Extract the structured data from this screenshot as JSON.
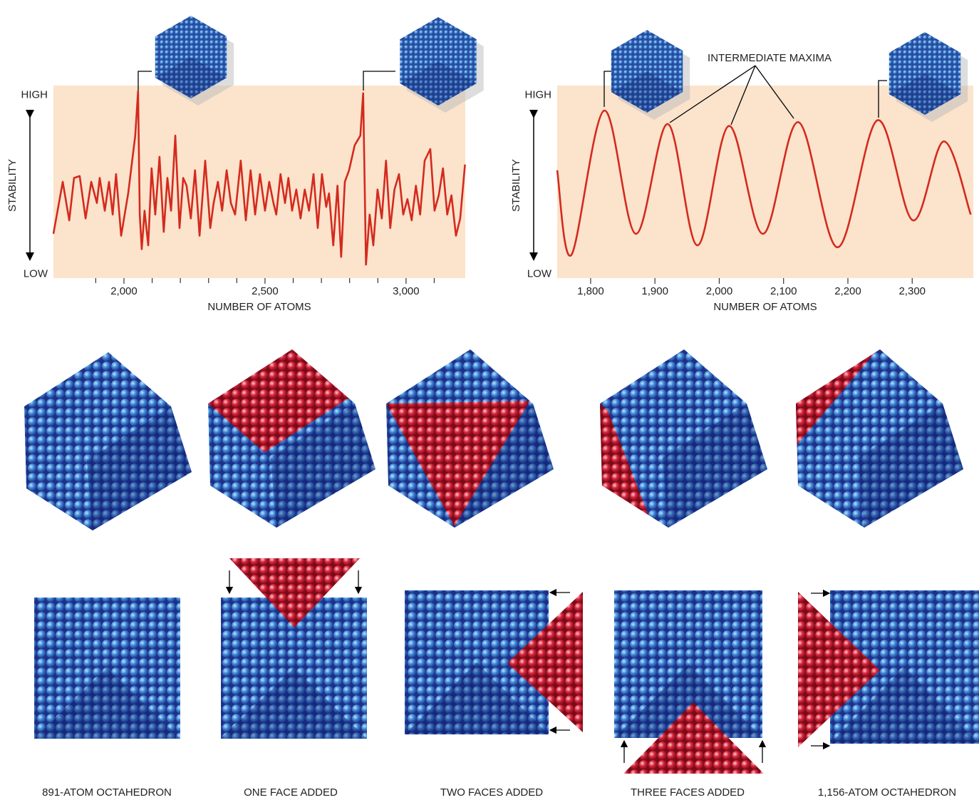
{
  "chart_data": [
    {
      "type": "line",
      "y_label": "STABILITY",
      "x_label": "NUMBER OF ATOMS",
      "color": "#d42a1e",
      "background": "#fbe3cc",
      "xlim": [
        1750,
        3210
      ],
      "ylim": [
        0,
        1
      ],
      "xticks": [
        {
          "value": 2000,
          "label": "2,000"
        },
        {
          "value": 2500,
          "label": "2,500"
        },
        {
          "value": 3000,
          "label": "3,000"
        }
      ],
      "xminor_ticks": [
        1900,
        2100,
        2200,
        2300,
        2400,
        2600,
        2700,
        2800,
        2900,
        3100
      ],
      "yticks": [
        {
          "value": 0.95,
          "label": "HIGH"
        },
        {
          "value": 0.02,
          "label": "LOW"
        }
      ],
      "x": [
        1750,
        1783,
        1806,
        1823,
        1843,
        1864,
        1884,
        1904,
        1914,
        1932,
        1947,
        1960,
        1972,
        1990,
        2015,
        2040,
        2050,
        2056,
        2063,
        2073,
        2086,
        2098,
        2111,
        2126,
        2141,
        2154,
        2167,
        2182,
        2197,
        2210,
        2222,
        2237,
        2252,
        2268,
        2288,
        2306,
        2318,
        2333,
        2348,
        2364,
        2379,
        2394,
        2414,
        2432,
        2449,
        2465,
        2482,
        2500,
        2515,
        2530,
        2540,
        2555,
        2571,
        2583,
        2596,
        2611,
        2626,
        2641,
        2656,
        2672,
        2687,
        2702,
        2717,
        2727,
        2742,
        2757,
        2770,
        2783,
        2798,
        2818,
        2838,
        2848,
        2858,
        2871,
        2884,
        2899,
        2914,
        2929,
        2944,
        2959,
        2975,
        2990,
        3005,
        3020,
        3035,
        3050,
        3066,
        3086,
        3101,
        3116,
        3131,
        3146,
        3161,
        3177,
        3192,
        3209
      ],
      "values": [
        0.23,
        0.5,
        0.3,
        0.52,
        0.53,
        0.31,
        0.5,
        0.39,
        0.52,
        0.35,
        0.5,
        0.33,
        0.54,
        0.22,
        0.44,
        0.74,
        0.97,
        0.33,
        0.15,
        0.35,
        0.17,
        0.57,
        0.33,
        0.63,
        0.24,
        0.52,
        0.35,
        0.74,
        0.26,
        0.52,
        0.48,
        0.31,
        0.56,
        0.22,
        0.61,
        0.26,
        0.39,
        0.5,
        0.35,
        0.56,
        0.39,
        0.33,
        0.61,
        0.3,
        0.56,
        0.33,
        0.54,
        0.35,
        0.5,
        0.39,
        0.33,
        0.54,
        0.39,
        0.52,
        0.35,
        0.46,
        0.31,
        0.46,
        0.35,
        0.54,
        0.26,
        0.54,
        0.37,
        0.44,
        0.17,
        0.48,
        0.11,
        0.5,
        0.56,
        0.69,
        0.74,
        0.96,
        0.07,
        0.33,
        0.17,
        0.46,
        0.31,
        0.61,
        0.26,
        0.46,
        0.54,
        0.33,
        0.41,
        0.3,
        0.48,
        0.33,
        0.61,
        0.67,
        0.35,
        0.43,
        0.57,
        0.33,
        0.43,
        0.22,
        0.31,
        0.59
      ]
    },
    {
      "type": "line",
      "y_label": "STABILITY",
      "x_label": "NUMBER OF ATOMS",
      "color": "#d42a1e",
      "background": "#fbe3cc",
      "annotation": "INTERMEDIATE MAXIMA",
      "xlim": [
        1748,
        2395
      ],
      "ylim": [
        0,
        1
      ],
      "xticks": [
        {
          "value": 1800,
          "label": "1,800"
        },
        {
          "value": 1900,
          "label": "1,900"
        },
        {
          "value": 2000,
          "label": "2,000"
        },
        {
          "value": 2100,
          "label": "2,100"
        },
        {
          "value": 2200,
          "label": "2,200"
        },
        {
          "value": 2300,
          "label": "2,300"
        }
      ],
      "yticks": [
        {
          "value": 0.95,
          "label": "HIGH"
        },
        {
          "value": 0.02,
          "label": "LOW"
        }
      ],
      "x": [
        1748,
        1770,
        1821,
        1870,
        1920,
        1966,
        2015,
        2068,
        2123,
        2184,
        2246,
        2301,
        2349,
        2391
      ],
      "values": [
        0.56,
        0.12,
        0.87,
        0.23,
        0.8,
        0.17,
        0.79,
        0.23,
        0.81,
        0.16,
        0.82,
        0.3,
        0.71,
        0.33
      ]
    }
  ],
  "diagram": {
    "labels": [
      "891-ATOM OCTAHEDRON",
      "ONE FACE ADDED",
      "TWO FACES ADDED",
      "THREE FACES ADDED",
      "1,156-ATOM OCTAHEDRON"
    ]
  }
}
